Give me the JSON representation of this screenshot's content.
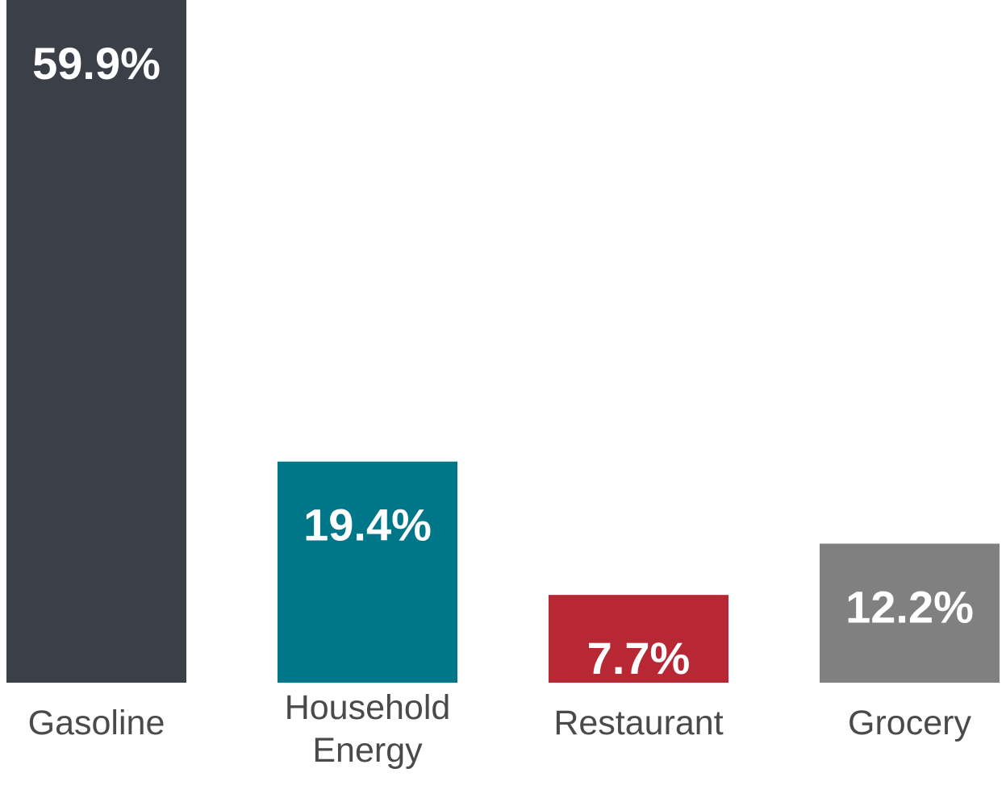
{
  "chart_data": {
    "type": "bar",
    "categories": [
      "Gasoline",
      "Household Energy",
      "Restaurant",
      "Grocery"
    ],
    "category_label_lines": [
      [
        "Gasoline"
      ],
      [
        "Household",
        "Energy"
      ],
      [
        "Restaurant"
      ],
      [
        "Grocery"
      ]
    ],
    "values": [
      59.9,
      19.4,
      7.7,
      12.2
    ],
    "value_labels": [
      "59.9%",
      "19.4%",
      "7.7%",
      "12.2%"
    ],
    "colors": [
      "#3a3f48",
      "#007788",
      "#b82834",
      "#808080"
    ],
    "ylim": [
      0,
      59.9
    ],
    "grid": false,
    "legend": "none"
  }
}
